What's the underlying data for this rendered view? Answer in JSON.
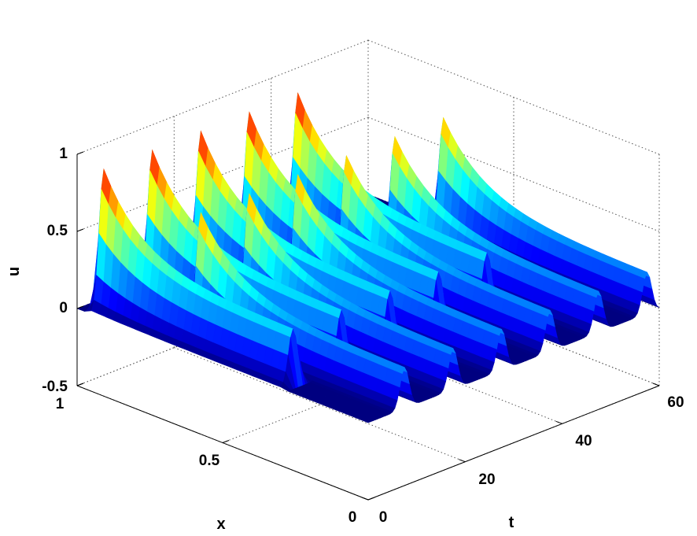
{
  "chart_data": {
    "type": "surface3d",
    "xlabel": "x",
    "ylabel": "t",
    "zlabel": "u",
    "xlim": [
      0,
      1
    ],
    "ylim": [
      0,
      60
    ],
    "zlim": [
      -0.5,
      1
    ],
    "x_ticks": [
      "0",
      "0.5",
      "1"
    ],
    "y_ticks": [
      "0",
      "20",
      "40",
      "60"
    ],
    "z_ticks": [
      "-0.5",
      "0",
      "0.5",
      "1"
    ],
    "grid": true,
    "colormap": "jet",
    "baseline_u": 0,
    "peak_u": 1,
    "pulses": [
      {
        "t": 2.5,
        "x_start": 0.97,
        "x_end": 0.3,
        "peak_u": 1.0
      },
      {
        "t": 12.5,
        "x_start": 0.97,
        "x_end": 0.3,
        "peak_u": 1.0
      },
      {
        "t": 22.5,
        "x_start": 0.97,
        "x_end": 0.3,
        "peak_u": 1.0
      },
      {
        "t": 32.5,
        "x_start": 0.97,
        "x_end": 0.3,
        "peak_u": 1.0
      },
      {
        "t": 42.5,
        "x_start": 0.97,
        "x_end": 0.3,
        "peak_u": 1.0
      },
      {
        "t": 7.5,
        "x_start": 0.7,
        "x_end": 0.0,
        "peak_u": 0.75
      },
      {
        "t": 17.5,
        "x_start": 0.7,
        "x_end": 0.0,
        "peak_u": 0.75
      },
      {
        "t": 27.5,
        "x_start": 0.7,
        "x_end": 0.0,
        "peak_u": 0.75
      },
      {
        "t": 37.5,
        "x_start": 0.7,
        "x_end": 0.0,
        "peak_u": 0.75
      },
      {
        "t": 47.5,
        "x_start": 0.7,
        "x_end": 0.0,
        "peak_u": 0.75
      },
      {
        "t": 57.5,
        "x_start": 0.7,
        "x_end": 0.0,
        "peak_u": 0.75
      }
    ]
  }
}
